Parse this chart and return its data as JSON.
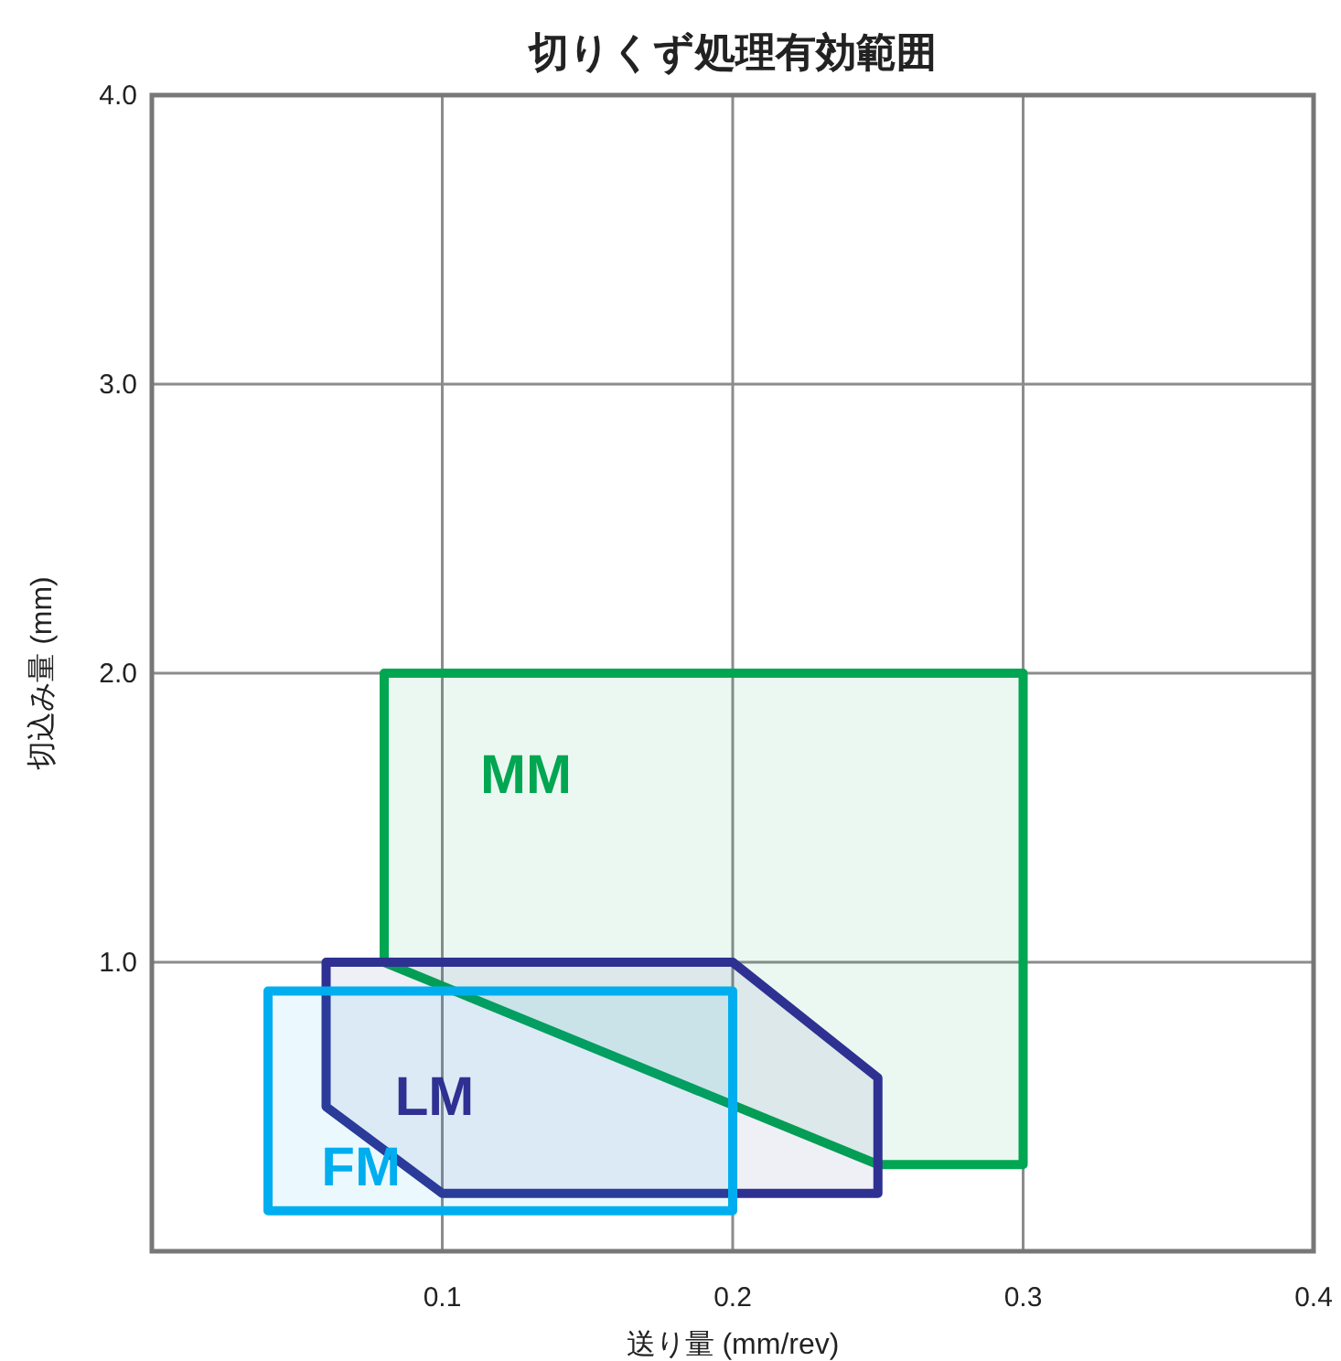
{
  "chart_data": {
    "type": "area",
    "title": "切りくず処理有効範囲",
    "xlabel": "送り量 (mm/rev)",
    "ylabel": "切込み量 (mm)",
    "xlim": [
      0,
      0.4
    ],
    "ylim": [
      0,
      4
    ],
    "xticks": [
      0.1,
      0.2,
      0.3,
      0.4
    ],
    "yticks": [
      {
        "value": 1,
        "label": "1.0"
      },
      {
        "value": 2,
        "label": "2.0"
      },
      {
        "value": 3,
        "label": "3.0"
      },
      {
        "value": 4,
        "label": "4.0"
      }
    ],
    "grid": true,
    "series": [
      {
        "name": "MM",
        "color": "#00a651",
        "x": [
          0.08,
          0.3,
          0.3,
          0.25,
          0.08
        ],
        "values": [
          2.0,
          2.0,
          0.3,
          0.3,
          1.0
        ]
      },
      {
        "name": "LM",
        "color": "#2e3192",
        "x": [
          0.06,
          0.1,
          0.25,
          0.25,
          0.2,
          0.06
        ],
        "values": [
          0.5,
          0.2,
          0.2,
          0.6,
          1.0,
          1.0
        ]
      },
      {
        "name": "FM",
        "color": "#00aeef",
        "x": [
          0.04,
          0.04,
          0.2,
          0.2
        ],
        "values": [
          0.14,
          0.9,
          0.9,
          0.14
        ]
      }
    ]
  }
}
